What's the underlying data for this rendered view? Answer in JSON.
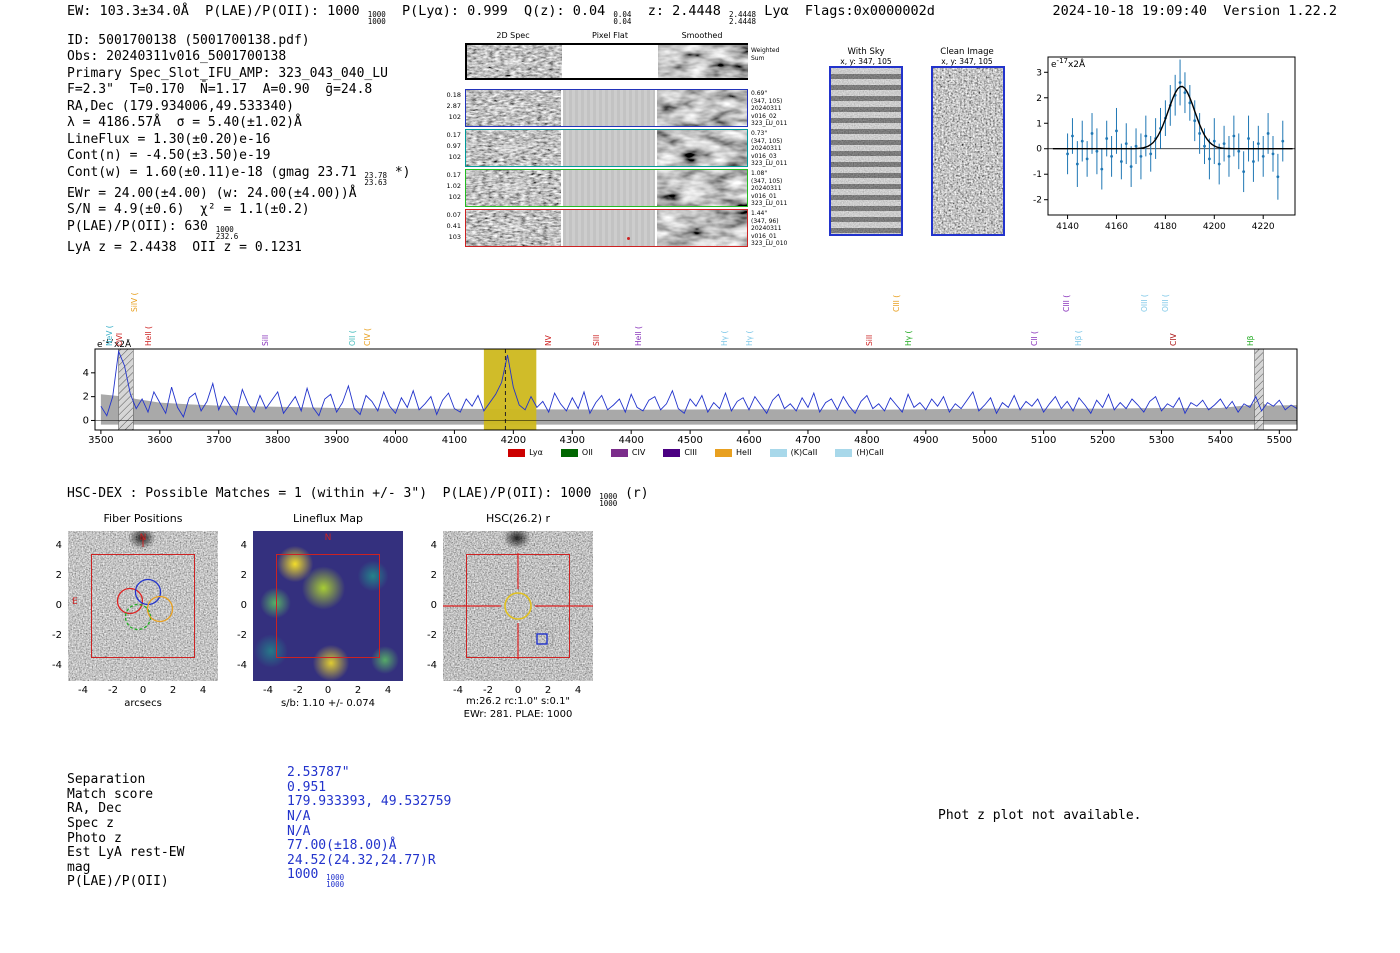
{
  "meta": {
    "timestamp": "2024-10-18 19:09:40  Version 1.22.2"
  },
  "header": {
    "segments": [
      {
        "t": "EW: 103.3±34.0Å  P(LAE)/P(OII): 1000 "
      },
      {
        "stack": [
          "1000",
          "1000"
        ]
      },
      {
        "t": "  P(Lyα): 0.999  Q(z): 0.04 "
      },
      {
        "stack": [
          "0.04",
          "0.04"
        ]
      },
      {
        "t": "  z: 2.4448 "
      },
      {
        "stack": [
          "2.4448",
          "2.4448"
        ]
      },
      {
        "t": " Lyα  Flags:0x0000002d"
      }
    ]
  },
  "detection_info": {
    "lines": [
      [
        {
          "t": "ID: 5001700138 (5001700138.pdf)"
        }
      ],
      [
        {
          "t": "Obs: 20240311v016_5001700138"
        }
      ],
      [
        {
          "t": "Primary Spec_Slot_IFU_AMP: 323_043_040_LU"
        }
      ],
      [
        {
          "t": "F=2.3\"  T=0.170  N̄=1.17  A=0.90  ḡ=24.8"
        }
      ],
      [
        {
          "t": "RA,Dec (179.934006,49.533340)"
        }
      ],
      [
        {
          "t": "λ = 4186.57Å  σ = 5.40(±1.02)Å"
        }
      ],
      [
        {
          "t": "LineFlux = 1.30(±0.20)e-16"
        }
      ],
      [
        {
          "t": "Cont(n) = -4.50(±3.50)e-19"
        }
      ],
      [
        {
          "t": "Cont(w) = 1.60(±0.11)e-18 (gmag 23.71 "
        },
        {
          "stack": [
            "23.78",
            "23.63"
          ]
        },
        {
          "t": " *)"
        }
      ],
      [
        {
          "t": "EWr = 24.00(±4.00) (w: 24.00(±4.00))Å"
        }
      ],
      [
        {
          "t": "S/N = 4.9(±0.6)  χ² = 1.1(±0.2)"
        }
      ],
      [
        {
          "t": "P(LAE)/P(OII): 630 "
        },
        {
          "stack": [
            "1000",
            "232.6"
          ]
        }
      ],
      [
        {
          "t": "LyA z = 2.4438  OII z = 0.1231"
        }
      ]
    ]
  },
  "spec2d": {
    "col_titles": [
      "2D Spec",
      "Pixel Flat",
      "Smoothed"
    ],
    "sum_label": "Weighted\nSum",
    "rows": [
      {
        "left": [
          "0.18",
          "2.87",
          "102"
        ],
        "right": [
          "0.69\"",
          "(347, 105)",
          "20240311",
          "v016_02",
          "323_LU_011"
        ],
        "color": "#2233bb"
      },
      {
        "left": [
          "0.17",
          "0.97",
          "102"
        ],
        "right": [
          "0.73\"",
          "(347, 105)",
          "20240311",
          "v016_03",
          "323_LU_011"
        ],
        "color": "#009999"
      },
      {
        "left": [
          "0.17",
          "1.02",
          "102"
        ],
        "right": [
          "1.08\"",
          "(347, 105)",
          "20240311",
          "v016_01",
          "323_LU_011"
        ],
        "color": "#22bb22"
      },
      {
        "left": [
          "0.07",
          "0.41",
          "103"
        ],
        "right": [
          "1.44\"",
          "(347, 96)",
          "20240311",
          "v016_01",
          "323_LU_010"
        ],
        "color": "#cc2222"
      }
    ]
  },
  "stamps": {
    "with_sky": {
      "title": "With Sky",
      "subtitle": "x, y: 347, 105"
    },
    "clean": {
      "title": "Clean Image",
      "subtitle": "x, y: 347, 105"
    }
  },
  "hsc_dex": {
    "segments": [
      {
        "t": "HSC-DEX : Possible Matches = 1 (within +/- 3\")  P(LAE)/P(OII): 1000 "
      },
      {
        "stack": [
          "1000",
          "1000"
        ]
      },
      {
        "t": " (r)"
      }
    ]
  },
  "cutouts": {
    "fiber": {
      "title": "Fiber Positions",
      "xlabel": "arcsecs",
      "north": "N",
      "east": "E",
      "ticks": [
        -4,
        -2,
        0,
        2,
        4
      ]
    },
    "lineflux": {
      "title": "Lineflux Map",
      "caption": "s/b: 1.10 +/- 0.074",
      "north": "N",
      "ticks": [
        -4,
        -2,
        0,
        2,
        4
      ]
    },
    "hsc": {
      "title": "HSC(26.2) r",
      "caption1": "m:26.2 rc:1.0\"  s:0.1\"",
      "caption2": "EWr: 281. PLAE: 1000",
      "ticks": [
        -4,
        -2,
        0,
        2,
        4
      ]
    }
  },
  "match_table": {
    "rows": [
      {
        "label": "Separation",
        "value": [
          {
            "t": "2.53787\""
          }
        ]
      },
      {
        "label": "Match score",
        "value": [
          {
            "t": "0.951"
          }
        ]
      },
      {
        "label": "RA, Dec",
        "value": [
          {
            "t": "179.933393, 49.532759"
          }
        ]
      },
      {
        "label": "Spec z",
        "value": [
          {
            "t": "N/A"
          }
        ]
      },
      {
        "label": "Photo z",
        "value": [
          {
            "t": "N/A"
          }
        ]
      },
      {
        "label": "Est LyA rest-EW",
        "value": [
          {
            "t": "77.00(±18.00)Å"
          }
        ]
      },
      {
        "label": "mag",
        "value": [
          {
            "t": "24.52(24.32,24.77)R"
          }
        ]
      },
      {
        "label": "P(LAE)/P(OII)",
        "value": [
          {
            "t": "1000 "
          },
          {
            "stack": [
              "1000",
              "1000"
            ]
          }
        ]
      }
    ]
  },
  "notes": {
    "photz": "Phot z plot not available."
  },
  "chart_data": [
    {
      "type": "scatter",
      "name": "emission-line-fit-inset",
      "ylabel": "e-17x2Å",
      "xlim": [
        4132,
        4233
      ],
      "ylim": [
        -2.6,
        3.6
      ],
      "x_ticks": [
        4140,
        4160,
        4180,
        4200,
        4220
      ],
      "y_ticks": [
        -2,
        -1,
        0,
        1,
        2,
        3
      ],
      "fit": {
        "mu": 4186.57,
        "sigma": 5.4,
        "amplitude": 2.45
      },
      "points": [
        [
          4140,
          -0.2,
          0.8
        ],
        [
          4142,
          0.5,
          0.7
        ],
        [
          4144,
          -0.6,
          0.9
        ],
        [
          4146,
          0.3,
          0.8
        ],
        [
          4148,
          -0.4,
          0.7
        ],
        [
          4150,
          0.6,
          0.8
        ],
        [
          4152,
          -0.1,
          0.9
        ],
        [
          4154,
          -0.8,
          0.8
        ],
        [
          4156,
          0.4,
          0.7
        ],
        [
          4158,
          -0.3,
          0.8
        ],
        [
          4160,
          0.7,
          0.9
        ],
        [
          4162,
          -0.5,
          0.7
        ],
        [
          4164,
          0.2,
          0.8
        ],
        [
          4166,
          -0.7,
          0.8
        ],
        [
          4168,
          0.1,
          0.7
        ],
        [
          4170,
          -0.3,
          0.9
        ],
        [
          4172,
          0.5,
          0.8
        ],
        [
          4174,
          -0.2,
          0.7
        ],
        [
          4176,
          0.4,
          0.8
        ],
        [
          4178,
          0.8,
          0.8
        ],
        [
          4180,
          1.2,
          0.7
        ],
        [
          4182,
          1.7,
          0.8
        ],
        [
          4184,
          2.1,
          0.8
        ],
        [
          4186,
          2.6,
          0.9
        ],
        [
          4188,
          2.2,
          0.8
        ],
        [
          4190,
          1.8,
          0.7
        ],
        [
          4192,
          1.1,
          0.8
        ],
        [
          4194,
          0.6,
          0.8
        ],
        [
          4196,
          0.1,
          0.7
        ],
        [
          4198,
          -0.4,
          0.8
        ],
        [
          4200,
          0.3,
          0.9
        ],
        [
          4202,
          -0.6,
          0.8
        ],
        [
          4204,
          0.2,
          0.7
        ],
        [
          4206,
          -0.3,
          0.8
        ],
        [
          4208,
          0.5,
          0.8
        ],
        [
          4210,
          -0.1,
          0.7
        ],
        [
          4212,
          -0.9,
          0.8
        ],
        [
          4214,
          0.4,
          0.9
        ],
        [
          4216,
          -0.5,
          0.8
        ],
        [
          4218,
          0.2,
          0.7
        ],
        [
          4220,
          -0.3,
          0.8
        ],
        [
          4222,
          0.6,
          0.8
        ],
        [
          4224,
          -0.2,
          0.7
        ],
        [
          4226,
          -1.1,
          0.9
        ],
        [
          4228,
          0.3,
          0.8
        ]
      ]
    },
    {
      "type": "line",
      "name": "full-spectrum",
      "ylabel": "e-17x2Å",
      "xlim": [
        3490,
        5530
      ],
      "ylim": [
        -0.8,
        6.0
      ],
      "x_ticks": [
        3500,
        3600,
        3700,
        3800,
        3900,
        4000,
        4100,
        4200,
        4300,
        4400,
        4500,
        4600,
        4700,
        4800,
        4900,
        5000,
        5100,
        5200,
        5300,
        5400,
        5500
      ],
      "y_ticks": [
        0,
        2,
        4
      ],
      "x_start": 3500,
      "x_step": 10,
      "flux": [
        1.2,
        0.4,
        2.0,
        5.8,
        4.6,
        2.2,
        1.0,
        1.8,
        0.7,
        2.4,
        1.5,
        0.6,
        2.8,
        1.1,
        0.3,
        1.9,
        2.3,
        0.8,
        1.6,
        3.1,
        0.9,
        2.0,
        1.2,
        0.5,
        2.6,
        1.4,
        0.7,
        2.1,
        1.0,
        1.7,
        2.4,
        0.6,
        1.3,
        2.0,
        0.8,
        2.7,
        1.1,
        0.4,
        1.8,
        2.2,
        0.7,
        1.5,
        2.9,
        1.0,
        0.5,
        2.1,
        1.6,
        0.8,
        2.4,
        1.2,
        0.6,
        1.9,
        1.1,
        2.5,
        0.9,
        1.4,
        2.0,
        0.5,
        1.7,
        2.3,
        1.0,
        0.7,
        1.8,
        1.2,
        2.1,
        0.8,
        1.5,
        2.2,
        3.2,
        5.5,
        2.8,
        1.3,
        0.9,
        2.0,
        1.1,
        1.6,
        0.7,
        2.3,
        1.4,
        0.8,
        1.9,
        1.0,
        2.4,
        0.6,
        1.5,
        2.1,
        0.9,
        1.3,
        1.8,
        0.7,
        2.2,
        1.1,
        0.8,
        1.7,
        2.0,
        0.9,
        1.4,
        2.5,
        1.0,
        0.6,
        1.8,
        1.2,
        2.1,
        0.7,
        1.5,
        1.0,
        2.3,
        0.8,
        1.6,
        1.9,
        0.9,
        2.0,
        1.3,
        0.6,
        1.7,
        2.2,
        1.0,
        1.4,
        0.8,
        1.9,
        1.1,
        2.3,
        0.7,
        1.5,
        1.8,
        0.9,
        2.0,
        1.2,
        0.6,
        1.6,
        2.1,
        1.0,
        1.4,
        0.8,
        1.9,
        1.3,
        0.7,
        2.2,
        1.1,
        1.5,
        0.9,
        1.8,
        1.2,
        2.0,
        0.7,
        1.4,
        1.0,
        1.7,
        2.4,
        0.8,
        1.3,
        1.9,
        0.6,
        1.5,
        1.1,
        2.1,
        0.9,
        1.6,
        1.2,
        1.8,
        0.7,
        1.4,
        2.0,
        1.0,
        1.6,
        0.8,
        1.9,
        1.3,
        0.6,
        1.7,
        1.1,
        2.2,
        0.9,
        1.5,
        1.0,
        1.8,
        1.3,
        0.7,
        1.6,
        2.0,
        0.8,
        1.4,
        1.1,
        1.9,
        0.6,
        1.5,
        1.2,
        1.7,
        0.9,
        1.3,
        1.8,
        1.0,
        1.6,
        0.7,
        1.4,
        1.1,
        2.0,
        0.8,
        1.5,
        1.2,
        1.7,
        0.9,
        1.3,
        1.0,
        1.5
      ],
      "noise_band": [
        [
          3500,
          2.2
        ],
        [
          3540,
          2.0
        ],
        [
          3560,
          1.8
        ],
        [
          3600,
          1.5
        ],
        [
          3650,
          1.35
        ],
        [
          3700,
          1.25
        ],
        [
          3800,
          1.15
        ],
        [
          3900,
          1.05
        ],
        [
          4000,
          1.0
        ],
        [
          4100,
          0.98
        ],
        [
          4200,
          0.95
        ],
        [
          4300,
          0.92
        ],
        [
          4400,
          0.9
        ],
        [
          4500,
          0.92
        ],
        [
          4600,
          0.95
        ],
        [
          4700,
          0.92
        ],
        [
          4800,
          0.9
        ],
        [
          4900,
          0.95
        ],
        [
          5000,
          1.0
        ],
        [
          5100,
          1.0
        ],
        [
          5200,
          1.0
        ],
        [
          5300,
          1.05
        ],
        [
          5400,
          1.05
        ],
        [
          5450,
          1.3
        ],
        [
          5465,
          1.6
        ],
        [
          5480,
          1.25
        ],
        [
          5540,
          1.3
        ]
      ],
      "highlight": {
        "x0": 4150,
        "x1": 4239,
        "color": "#cdb81e",
        "line_x": 4186.57
      },
      "masked_regions": [
        [
          3530,
          3555
        ],
        [
          5458,
          5473
        ]
      ],
      "line_labels": [
        {
          "wave": 3525,
          "label": "NeV (",
          "color": "#3bb0c9",
          "tier": 1
        },
        {
          "wave": 3543,
          "label": "OVI",
          "color": "#cc2222",
          "tier": 1
        },
        {
          "wave": 3568,
          "label": "SiIV (",
          "color": "#e8a020",
          "tier": 2
        },
        {
          "wave": 3592,
          "label": "HeII (",
          "color": "#cc2222",
          "tier": 1
        },
        {
          "wave": 3790,
          "label": "SiII",
          "color": "#8833bb",
          "tier": 1
        },
        {
          "wave": 3938,
          "label": "OII (",
          "color": "#44bbbb",
          "tier": 1
        },
        {
          "wave": 3963,
          "label": "CIV (",
          "color": "#e8a020",
          "tier": 1
        },
        {
          "wave": 4270,
          "label": "NV",
          "color": "#cc2222",
          "tier": 1
        },
        {
          "wave": 4352,
          "label": "SIII",
          "color": "#cc2222",
          "tier": 1
        },
        {
          "wave": 4424,
          "label": "HeII (",
          "color": "#8833bb",
          "tier": 1
        },
        {
          "wave": 4570,
          "label": "Hγ (",
          "color": "#7fc8e8",
          "tier": 1
        },
        {
          "wave": 4612,
          "label": "Hγ (",
          "color": "#7fc8e8",
          "tier": 1
        },
        {
          "wave": 4816,
          "label": "SiII",
          "color": "#cc2222",
          "tier": 1
        },
        {
          "wave": 4862,
          "label": "CIII (",
          "color": "#e8a020",
          "tier": 2
        },
        {
          "wave": 4882,
          "label": "Hγ (",
          "color": "#22aa22",
          "tier": 1
        },
        {
          "wave": 5095,
          "label": "CII (",
          "color": "#8833bb",
          "tier": 1
        },
        {
          "wave": 5150,
          "label": "CIII (",
          "color": "#8833bb",
          "tier": 2
        },
        {
          "wave": 5170,
          "label": "Hβ (",
          "color": "#7fc8e8",
          "tier": 1
        },
        {
          "wave": 5282,
          "label": "OIII (",
          "color": "#7fc8e8",
          "tier": 2
        },
        {
          "wave": 5318,
          "label": "OIII (",
          "color": "#7fc8e8",
          "tier": 2
        },
        {
          "wave": 5332,
          "label": "CIV",
          "color": "#aa1111",
          "tier": 1
        },
        {
          "wave": 5462,
          "label": "Hβ",
          "color": "#22aa22",
          "tier": 1
        }
      ],
      "legend": [
        {
          "label": "Lyα",
          "color": "#cc0000"
        },
        {
          "label": "OII",
          "color": "#006600"
        },
        {
          "label": "CIV",
          "color": "#7b2d8b"
        },
        {
          "label": "CIII",
          "color": "#4b0082"
        },
        {
          "label": "HeII",
          "color": "#e8a020"
        },
        {
          "label": "(K)CaII",
          "color": "#a8d8ea"
        },
        {
          "label": "(H)CaII",
          "color": "#a8d8ea"
        }
      ]
    }
  ]
}
